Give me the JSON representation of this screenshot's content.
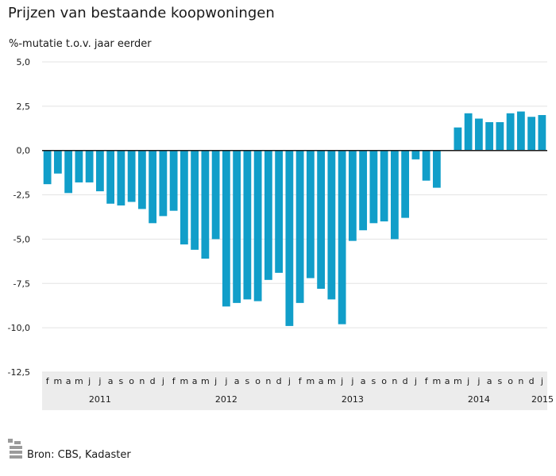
{
  "title": "Prijzen van bestaande koopwoningen",
  "subtitle": "%-mutatie t.o.v. jaar eerder",
  "source": "Bron: CBS, Kadaster",
  "colors": {
    "bar": "#119ec9",
    "grid": "#e3e3e3",
    "axis_band": "#ececec",
    "zero_line": "#1a1a1a"
  },
  "chart_data": {
    "type": "bar",
    "title": "Prijzen van bestaande koopwoningen",
    "ylabel": "%-mutatie t.o.v. jaar eerder",
    "ylim": [
      -12.5,
      5.0
    ],
    "yticks": [
      5.0,
      2.5,
      0.0,
      -2.5,
      -5.0,
      -7.5,
      -10.0,
      -12.5
    ],
    "ytick_labels": [
      "5,0",
      "2,5",
      "0,0",
      "-2,5",
      "-5,0",
      "-7,5",
      "-10,0",
      "-12,5"
    ],
    "grid": true,
    "month_labels": [
      "f",
      "m",
      "a",
      "m",
      "j",
      "j",
      "a",
      "s",
      "o",
      "n",
      "d",
      "j",
      "f",
      "m",
      "a",
      "m",
      "j",
      "j",
      "a",
      "s",
      "o",
      "n",
      "d",
      "j",
      "f",
      "m",
      "a",
      "m",
      "j",
      "j",
      "a",
      "s",
      "o",
      "n",
      "d",
      "j",
      "f",
      "m",
      "a",
      "m",
      "j",
      "j",
      "a",
      "s",
      "o",
      "n",
      "d",
      "j"
    ],
    "year_labels": [
      {
        "label": "2011",
        "month_index": 5
      },
      {
        "label": "2012",
        "month_index": 17
      },
      {
        "label": "2013",
        "month_index": 29
      },
      {
        "label": "2014",
        "month_index": 41
      },
      {
        "label": "2015",
        "month_index": 47
      }
    ],
    "categories": [
      "feb 2011",
      "mrt 2011",
      "apr 2011",
      "mei 2011",
      "jun 2011",
      "jul 2011",
      "aug 2011",
      "sep 2011",
      "okt 2011",
      "nov 2011",
      "dec 2011",
      "jan 2012",
      "feb 2012",
      "mrt 2012",
      "apr 2012",
      "mei 2012",
      "jun 2012",
      "jul 2012",
      "aug 2012",
      "sep 2012",
      "okt 2012",
      "nov 2012",
      "dec 2012",
      "jan 2013",
      "feb 2013",
      "mrt 2013",
      "apr 2013",
      "mei 2013",
      "jun 2013",
      "jul 2013",
      "aug 2013",
      "sep 2013",
      "okt 2013",
      "nov 2013",
      "dec 2013",
      "jan 2014",
      "feb 2014",
      "mrt 2014",
      "apr 2014",
      "mei 2014",
      "jun 2014",
      "jul 2014",
      "aug 2014",
      "sep 2014",
      "okt 2014",
      "nov 2014",
      "dec 2014",
      "jan 2015"
    ],
    "values": [
      -1.9,
      -1.3,
      -2.4,
      -1.8,
      -1.8,
      -2.3,
      -3.0,
      -3.1,
      -2.9,
      -3.3,
      -4.1,
      -3.7,
      -3.4,
      -5.3,
      -5.6,
      -6.1,
      -5.0,
      -8.8,
      -8.6,
      -8.4,
      -8.5,
      -7.3,
      -6.9,
      -9.9,
      -8.6,
      -7.2,
      -7.8,
      -8.4,
      -9.8,
      -5.1,
      -4.5,
      -4.1,
      -4.0,
      -5.0,
      -3.8,
      -0.5,
      -1.7,
      -2.1,
      0.0,
      1.3,
      2.1,
      1.8,
      1.6,
      1.6,
      2.1,
      2.2,
      1.9,
      2.0
    ]
  }
}
